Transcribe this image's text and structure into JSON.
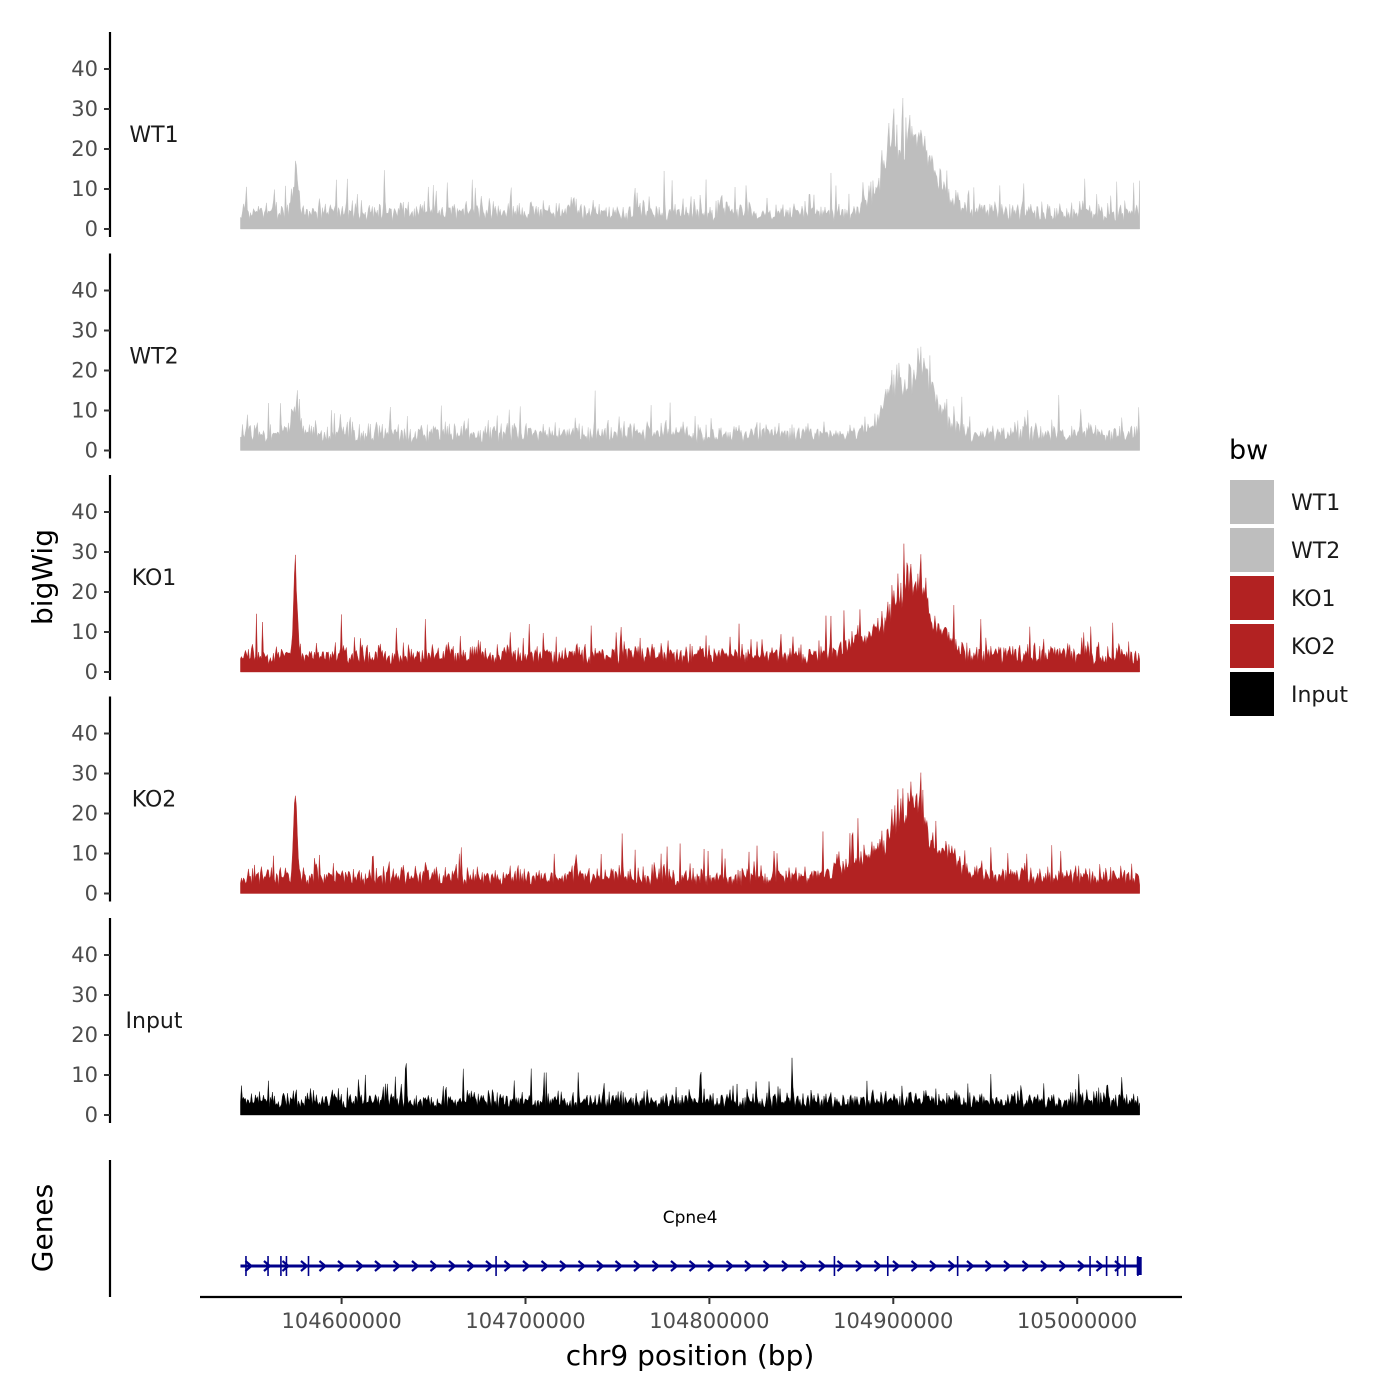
{
  "chart_data": {
    "type": "area",
    "layout": "stacked-tracks",
    "title": "",
    "xlabel": "chr9 position (bp)",
    "ylabel": "bigWig",
    "genes_label": "Genes",
    "xlim": [
      104523000,
      105057000
    ],
    "data_range": [
      104545000,
      105034000
    ],
    "ylim": [
      0,
      48
    ],
    "x_ticks": [
      104600000,
      104700000,
      104800000,
      104900000,
      105000000
    ],
    "x_tick_labels": [
      "104600000",
      "104700000",
      "104800000",
      "104900000",
      "105000000"
    ],
    "y_ticks": [
      0,
      10,
      20,
      30,
      40
    ],
    "y_tick_labels": [
      "0",
      "10",
      "20",
      "30",
      "40"
    ],
    "legend": {
      "title": "bw",
      "placement": "right",
      "entries": [
        {
          "label": "WT1",
          "color": "#bebebe"
        },
        {
          "label": "WT2",
          "color": "#bebebe"
        },
        {
          "label": "KO1",
          "color": "#b22222"
        },
        {
          "label": "KO2",
          "color": "#b22222"
        },
        {
          "label": "Input",
          "color": "#000000"
        }
      ]
    },
    "series": [
      {
        "name": "WT1",
        "label": "WT1",
        "color": "#bebebe",
        "baseline": 5,
        "noise": 4,
        "spike_prob": 0.06,
        "spike_max": 9,
        "seed": 11,
        "peaks": [
          {
            "center": 104575000,
            "width": 1200,
            "height": 17
          },
          {
            "center": 104903000,
            "width": 9000,
            "height": 22
          },
          {
            "center": 104916000,
            "width": 5000,
            "height": 14
          },
          {
            "center": 104927000,
            "width": 6000,
            "height": 6
          }
        ]
      },
      {
        "name": "WT2",
        "label": "WT2",
        "color": "#bebebe",
        "baseline": 5,
        "noise": 4,
        "spike_prob": 0.06,
        "spike_max": 8,
        "seed": 23,
        "peaks": [
          {
            "center": 104575000,
            "width": 2500,
            "height": 9
          },
          {
            "center": 104905000,
            "width": 9000,
            "height": 18
          },
          {
            "center": 104917000,
            "width": 4000,
            "height": 14
          },
          {
            "center": 104928000,
            "width": 6000,
            "height": 5
          }
        ]
      },
      {
        "name": "KO1",
        "label": "KO1",
        "color": "#b22222",
        "baseline": 5,
        "noise": 4,
        "spike_prob": 0.07,
        "spike_max": 9,
        "seed": 37,
        "peaks": [
          {
            "center": 104575000,
            "width": 1000,
            "height": 30
          },
          {
            "center": 104888000,
            "width": 12000,
            "height": 6
          },
          {
            "center": 104907000,
            "width": 8000,
            "height": 20
          },
          {
            "center": 104915000,
            "width": 4000,
            "height": 12
          },
          {
            "center": 104927000,
            "width": 6000,
            "height": 6
          }
        ]
      },
      {
        "name": "KO2",
        "label": "KO2",
        "color": "#b22222",
        "baseline": 5,
        "noise": 4,
        "spike_prob": 0.07,
        "spike_max": 9,
        "seed": 53,
        "peaks": [
          {
            "center": 104575000,
            "width": 1000,
            "height": 30
          },
          {
            "center": 104885000,
            "width": 11000,
            "height": 6
          },
          {
            "center": 104906000,
            "width": 8000,
            "height": 20
          },
          {
            "center": 104915000,
            "width": 4000,
            "height": 13
          },
          {
            "center": 104930000,
            "width": 6000,
            "height": 8
          }
        ]
      },
      {
        "name": "Input",
        "label": "Input",
        "color": "#000000",
        "baseline": 4,
        "noise": 4,
        "spike_prob": 0.05,
        "spike_max": 7,
        "seed": 71,
        "peaks": [
          {
            "center": 104635000,
            "width": 400,
            "height": 16
          },
          {
            "center": 104795000,
            "width": 400,
            "height": 10
          },
          {
            "center": 104845000,
            "width": 400,
            "height": 8
          }
        ]
      }
    ],
    "gene": {
      "name": "Cpne4",
      "start": 104545000,
      "end": 105034000,
      "strand": "+",
      "color": "#00008b",
      "exons": [
        104548000,
        104560000,
        104567000,
        104570000,
        104582000,
        104684000,
        104868000,
        104897000,
        104935000,
        105007000,
        105016000,
        105022000,
        105026000,
        105033000
      ]
    }
  }
}
